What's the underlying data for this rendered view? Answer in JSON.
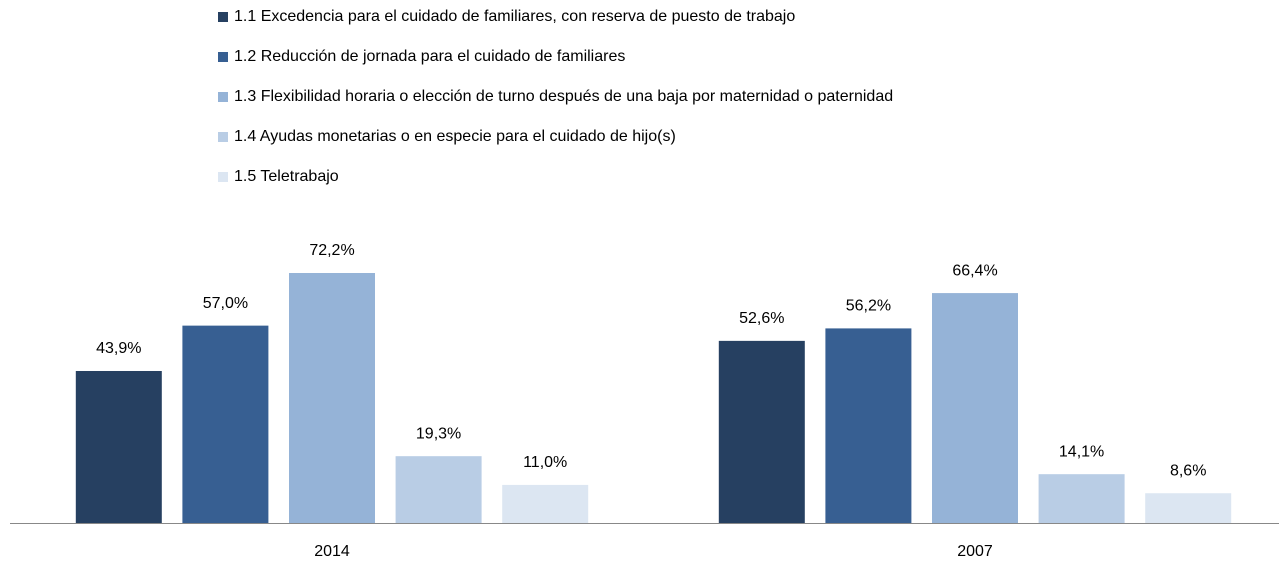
{
  "chart_data": {
    "type": "bar",
    "categories": [
      "2014",
      "2007"
    ],
    "series": [
      {
        "name": "1.1 Excedencia para el cuidado de familiares, con reserva de puesto de trabajo",
        "color": "#264061",
        "values": [
          43.9,
          52.6
        ],
        "value_labels": [
          "43,9%",
          "52,6%"
        ]
      },
      {
        "name": "1.2 Reducción de jornada para el cuidado de familiares",
        "color": "#375f92",
        "values": [
          57.0,
          56.2
        ],
        "value_labels": [
          "57,0%",
          "56,2%"
        ]
      },
      {
        "name": "1.3 Flexibilidad horaria o elección de turno después de una baja por maternidad o paternidad",
        "color": "#95b3d7",
        "values": [
          72.2,
          66.4
        ],
        "value_labels": [
          "72,2%",
          "66,4%"
        ]
      },
      {
        "name": "1.4 Ayudas monetarias o en especie para el cuidado de hijo(s)",
        "color": "#b9cde5",
        "values": [
          19.3,
          14.1
        ],
        "value_labels": [
          "19,3%",
          "14,1%"
        ]
      },
      {
        "name": "1.5 Teletrabajo",
        "color": "#dce6f2",
        "values": [
          11.0,
          8.6
        ],
        "value_labels": [
          "11,0%",
          "8,6%"
        ]
      }
    ],
    "legend": "top"
  }
}
